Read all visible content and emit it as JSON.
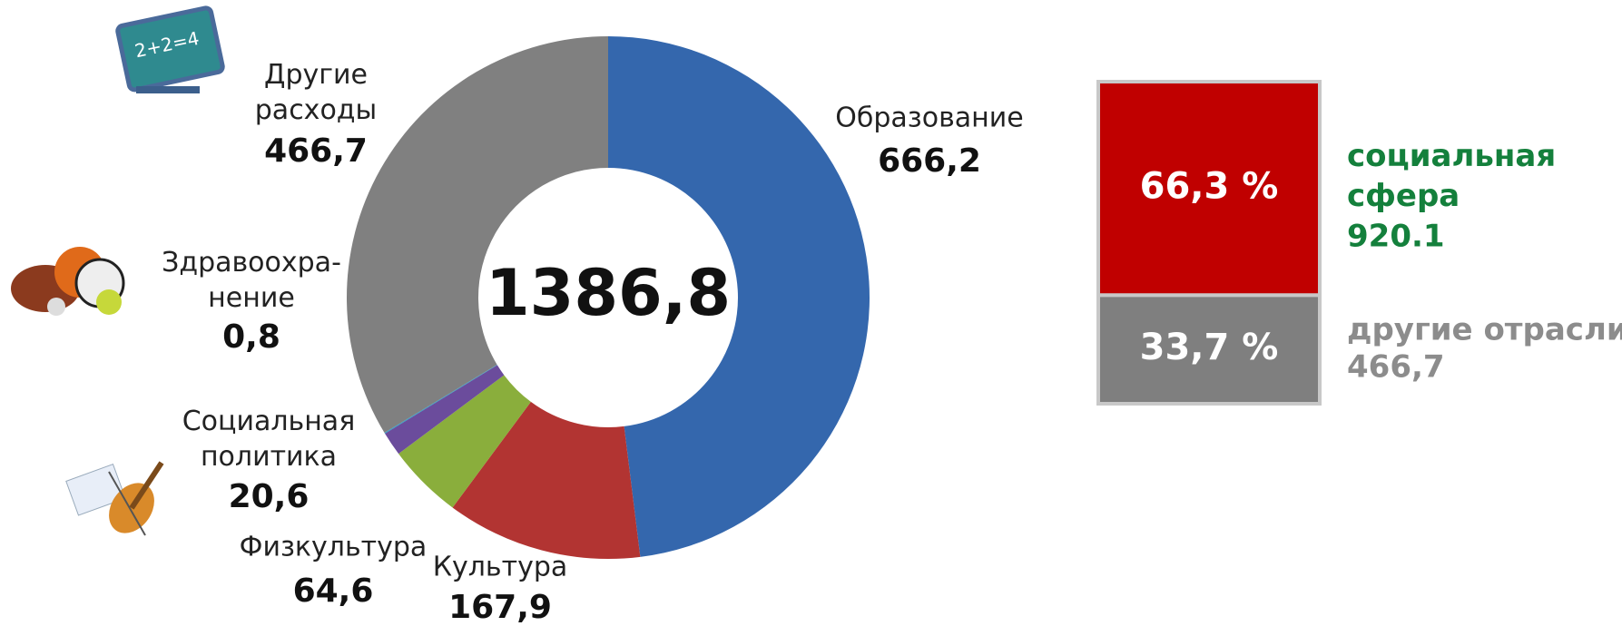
{
  "chart_data": [
    {
      "type": "donut",
      "categories": [
        "Образование",
        "Культура",
        "Физкультура",
        "Социальная\nполитика",
        "Здравоохра-\nнение",
        "Другие\nрасходы"
      ],
      "values": [
        666.2,
        167.9,
        64.6,
        20.6,
        0.8,
        466.7
      ],
      "value_labels": [
        "666,2",
        "167,9",
        "64,6",
        "20,6",
        "0,8",
        "466,7"
      ],
      "colors": [
        "#3467ad",
        "#b23432",
        "#8aae3c",
        "#6b4c9c",
        "#2e9fc4",
        "#808080"
      ],
      "total": {
        "value": 1386.8,
        "label": "1386,8"
      }
    },
    {
      "type": "stacked_bar",
      "ylim": [
        0,
        100
      ],
      "series": [
        {
          "name": "социальная\nсфера",
          "color": "#c00000",
          "values": [
            66.3
          ],
          "value_labels": [
            "66,3 %"
          ],
          "amount": 920.1,
          "name_color": "#14803c"
        },
        {
          "name": "другие отрасли",
          "color": "#7f7f7f",
          "values": [
            33.7
          ],
          "value_labels": [
            "33,7 %"
          ],
          "amount": {
            "value": 466.7,
            "label": "466,7"
          },
          "name_color": "#8c8c8c"
        }
      ]
    }
  ]
}
